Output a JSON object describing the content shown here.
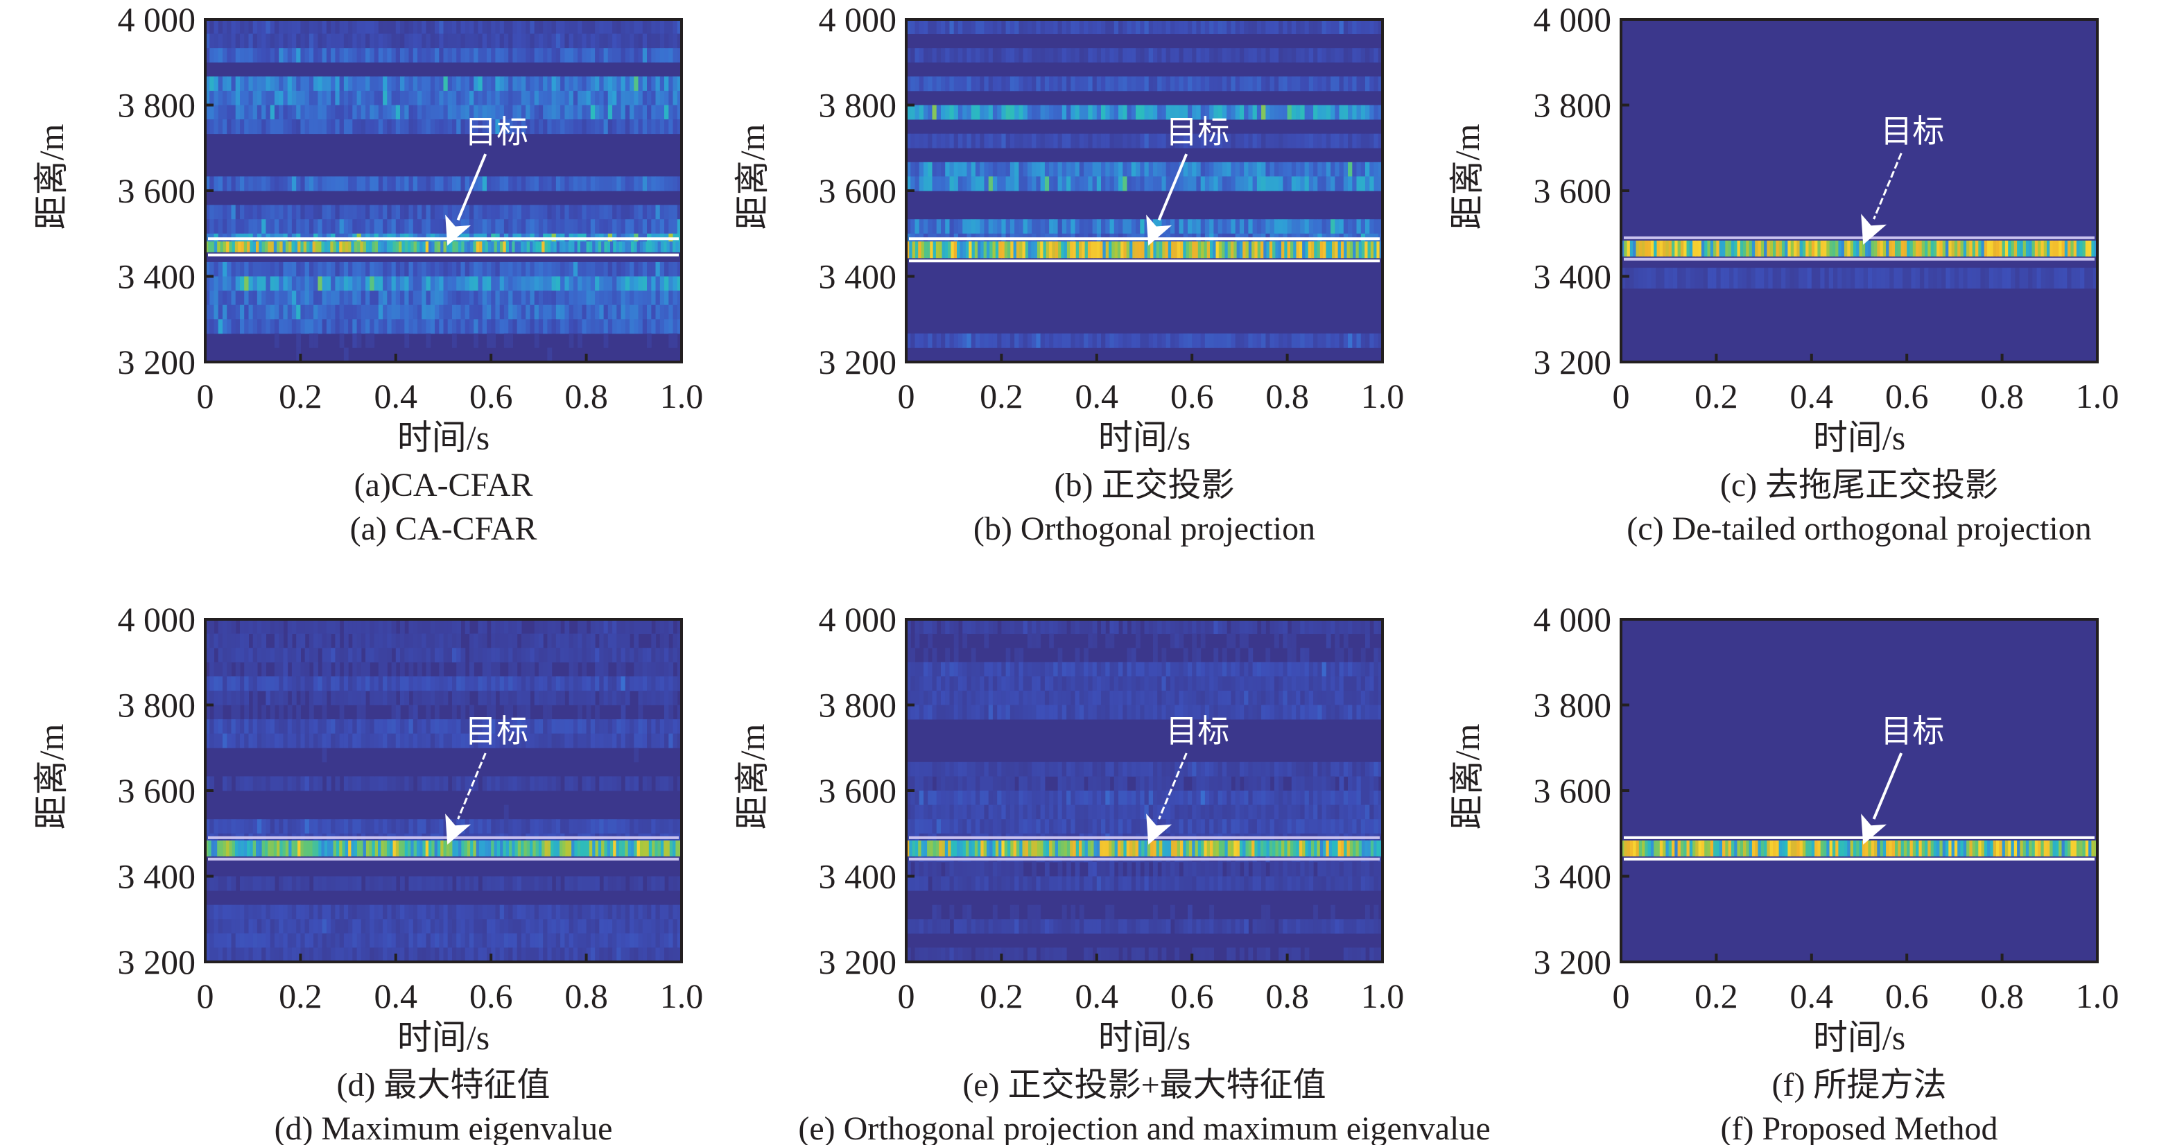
{
  "colors": {
    "background": "#3b378c",
    "frame": "#231f20",
    "annotation": "#ffffff",
    "colormap": [
      "#3b378c",
      "#3d4fb8",
      "#3a6fd0",
      "#2f9fd6",
      "#2bbbbf",
      "#5ec47a",
      "#a8c83e",
      "#f0b22c",
      "#f7d531"
    ]
  },
  "chart_data": [
    {
      "id": "a",
      "type": "heatmap",
      "caption_cn": "(a)CA-CFAR",
      "caption_en": "(a) CA-CFAR",
      "xlabel": "时间/s",
      "ylabel": "距离/m",
      "xlim": [
        0,
        1.0
      ],
      "ylim": [
        3200,
        4000
      ],
      "xticks": [
        "0",
        "0.2",
        "0.4",
        "0.6",
        "0.8",
        "1.0"
      ],
      "yticks": [
        "3 200",
        "3 400",
        "3 600",
        "3 800",
        "4 000"
      ],
      "annotation": "目标",
      "target_range_m": [
        3450,
        3488
      ],
      "clutter_level": 0.35,
      "target_level": 0.55,
      "arrow_style": "solid"
    },
    {
      "id": "b",
      "type": "heatmap",
      "caption_cn": "(b) 正交投影",
      "caption_en": "(b) Orthogonal projection",
      "xlabel": "时间/s",
      "ylabel": "距离/m",
      "xlim": [
        0,
        1.0
      ],
      "ylim": [
        3200,
        4000
      ],
      "xticks": [
        "0",
        "0.2",
        "0.4",
        "0.6",
        "0.8",
        "1.0"
      ],
      "yticks": [
        "3 200",
        "3 400",
        "3 600",
        "3 800",
        "4 000"
      ],
      "annotation": "目标",
      "target_range_m": [
        3436,
        3488
      ],
      "clutter_level": 0.38,
      "target_level": 0.7,
      "arrow_style": "solid"
    },
    {
      "id": "c",
      "type": "heatmap",
      "caption_cn": "(c) 去拖尾正交投影",
      "caption_en": "(c) De-tailed orthogonal projection",
      "xlabel": "时间/s",
      "ylabel": "距离/m",
      "xlim": [
        0,
        1.0
      ],
      "ylim": [
        3200,
        4000
      ],
      "xticks": [
        "0",
        "0.2",
        "0.4",
        "0.6",
        "0.8",
        "1.0"
      ],
      "yticks": [
        "3 200",
        "3 400",
        "3 600",
        "3 800",
        "4 000"
      ],
      "annotation": "目标",
      "target_range_m": [
        3440,
        3490
      ],
      "clutter_level": 0.0,
      "target_level": 0.75,
      "arrow_style": "dashed"
    },
    {
      "id": "d",
      "type": "heatmap",
      "caption_cn": "(d) 最大特征值",
      "caption_en": "(d) Maximum eigenvalue",
      "xlabel": "时间/s",
      "ylabel": "距离/m",
      "xlim": [
        0,
        1.0
      ],
      "ylim": [
        3200,
        4000
      ],
      "xticks": [
        "0",
        "0.2",
        "0.4",
        "0.6",
        "0.8",
        "1.0"
      ],
      "yticks": [
        "3 200",
        "3 400",
        "3 600",
        "3 800",
        "4 000"
      ],
      "annotation": "目标",
      "target_range_m": [
        3440,
        3490
      ],
      "clutter_level": 0.12,
      "target_level": 0.5,
      "arrow_style": "dashed"
    },
    {
      "id": "e",
      "type": "heatmap",
      "caption_cn": "(e) 正交投影+最大特征值",
      "caption_en": "(e) Orthogonal projection and maximum eigenvalue",
      "xlabel": "时间/s",
      "ylabel": "距离/m",
      "xlim": [
        0,
        1.0
      ],
      "ylim": [
        3200,
        4000
      ],
      "xticks": [
        "0",
        "0.2",
        "0.4",
        "0.6",
        "0.8",
        "1.0"
      ],
      "yticks": [
        "3 200",
        "3 400",
        "3 600",
        "3 800",
        "4 000"
      ],
      "annotation": "目标",
      "target_range_m": [
        3440,
        3490
      ],
      "clutter_level": 0.12,
      "target_level": 0.65,
      "arrow_style": "dashed"
    },
    {
      "id": "f",
      "type": "heatmap",
      "caption_cn": "(f) 所提方法",
      "caption_en": "(f) Proposed Method",
      "xlabel": "时间/s",
      "ylabel": "距离/m",
      "xlim": [
        0,
        1.0
      ],
      "ylim": [
        3200,
        4000
      ],
      "xticks": [
        "0",
        "0.2",
        "0.4",
        "0.6",
        "0.8",
        "1.0"
      ],
      "yticks": [
        "3 200",
        "3 400",
        "3 600",
        "3 800",
        "4 000"
      ],
      "annotation": "目标",
      "target_range_m": [
        3440,
        3490
      ],
      "clutter_level": 0.0,
      "target_level": 0.72,
      "arrow_style": "solid"
    }
  ]
}
